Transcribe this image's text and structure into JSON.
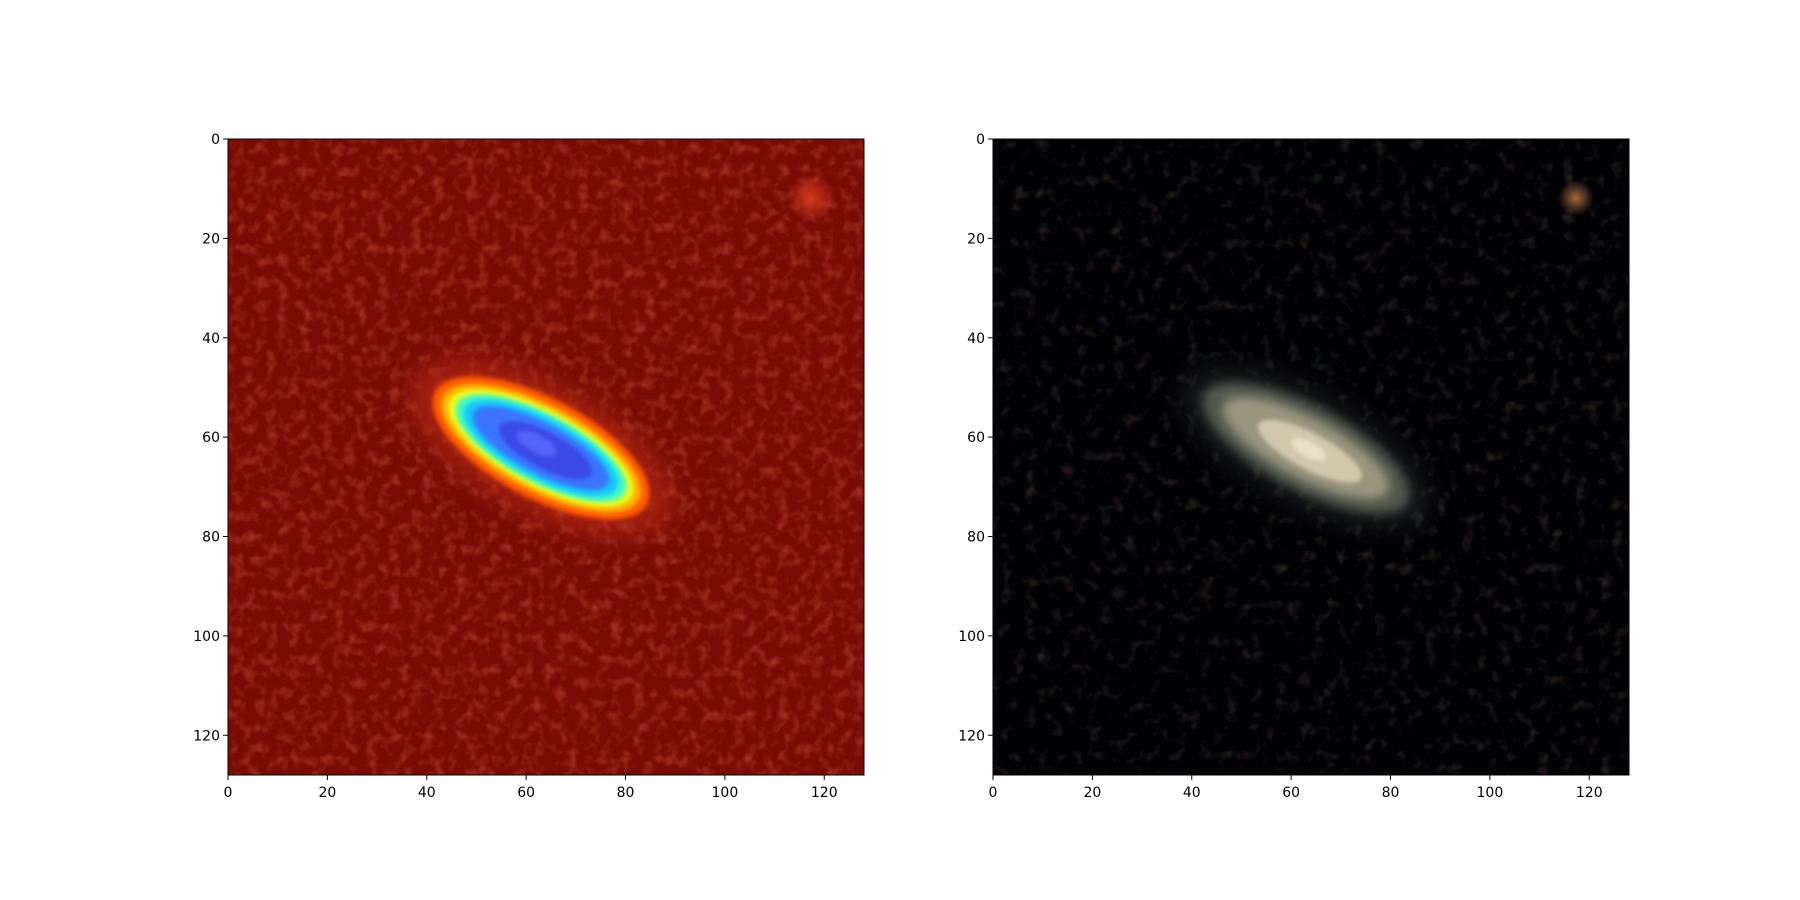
{
  "figure": {
    "background_color": "#ffffff",
    "panels": [
      {
        "id": "left",
        "description_type": "heatmap-colormap",
        "colormap": "jet",
        "x_ticks": [
          "0",
          "20",
          "40",
          "60",
          "80",
          "100",
          "120"
        ],
        "y_ticks": [
          "0",
          "20",
          "40",
          "60",
          "80",
          "100",
          "120"
        ],
        "x_range": [
          0,
          128
        ],
        "y_range": [
          0,
          128
        ],
        "y_inverted": true
      },
      {
        "id": "right",
        "description_type": "rgb-image",
        "x_ticks": [
          "0",
          "20",
          "40",
          "60",
          "80",
          "100",
          "120"
        ],
        "y_ticks": [
          "0",
          "20",
          "40",
          "60",
          "80",
          "100",
          "120"
        ],
        "x_range": [
          0,
          128
        ],
        "y_range": [
          0,
          128
        ],
        "y_inverted": true
      }
    ],
    "objects": {
      "galaxy_center": [
        63,
        62
      ],
      "galaxy_angle_deg": 28,
      "star_position": [
        118,
        12
      ]
    },
    "colors": {
      "left_background": "#7a0d05",
      "right_background": "#020205",
      "galaxy_core_left": "#3a5cff",
      "galaxy_core_right": "#e8dfc8"
    }
  }
}
